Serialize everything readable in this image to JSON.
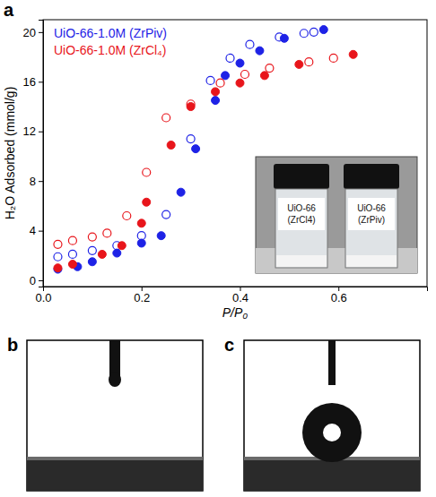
{
  "chart_data": {
    "type": "scatter",
    "panel_label": "a",
    "x_label": "P/P₀",
    "y_label": "H₂O Adsorbed (mmol/g)",
    "xlim": [
      0,
      0.78
    ],
    "ylim": [
      -0.5,
      21
    ],
    "xticks": [
      {
        "value": 0,
        "label": "0.0"
      },
      {
        "value": 0.2,
        "label": "0.2"
      },
      {
        "value": 0.4,
        "label": "0.4"
      },
      {
        "value": 0.6,
        "label": "0.6"
      }
    ],
    "yticks": [
      0,
      4,
      8,
      12,
      16,
      20
    ],
    "grid": false,
    "legend": "upper left",
    "series": [
      {
        "name": "UiO-66-1.0M (ZrPiv)",
        "color": "#1e22e6",
        "marker": "filled",
        "x": [
          0.03,
          0.07,
          0.1,
          0.15,
          0.2,
          0.24,
          0.28,
          0.31,
          0.35,
          0.37,
          0.4,
          0.44,
          0.49,
          0.57
        ],
        "values": [
          0.9,
          1.1,
          1.5,
          2.2,
          3.0,
          3.6,
          7.1,
          10.6,
          14.5,
          16.5,
          17.5,
          18.5,
          19.5,
          20.2
        ]
      },
      {
        "color": "#1e22e6",
        "marker": "open",
        "x": [
          0.03,
          0.06,
          0.1,
          0.15,
          0.2,
          0.25,
          0.3,
          0.34,
          0.38,
          0.42,
          0.48,
          0.53,
          0.55
        ],
        "values": [
          1.9,
          2.1,
          2.4,
          2.8,
          3.6,
          5.3,
          11.4,
          16.1,
          17.9,
          19.0,
          19.6,
          19.9,
          20.0
        ]
      },
      {
        "name": "UiO-66-1.0M (ZrCl₄)",
        "color": "#e8151b",
        "marker": "filled",
        "x": [
          0.03,
          0.06,
          0.12,
          0.16,
          0.2,
          0.21,
          0.26,
          0.3,
          0.35,
          0.4,
          0.45,
          0.52,
          0.63
        ],
        "values": [
          1.0,
          1.3,
          2.1,
          2.8,
          4.6,
          6.3,
          10.9,
          14.0,
          15.2,
          15.9,
          16.5,
          17.4,
          18.2
        ]
      },
      {
        "color": "#e8151b",
        "marker": "open",
        "x": [
          0.03,
          0.06,
          0.1,
          0.13,
          0.17,
          0.21,
          0.25,
          0.3,
          0.36,
          0.41,
          0.46,
          0.54,
          0.59
        ],
        "values": [
          2.9,
          3.2,
          3.5,
          3.8,
          5.2,
          8.7,
          13.1,
          14.2,
          15.9,
          16.6,
          17.1,
          17.6,
          17.9
        ]
      }
    ],
    "annotations": [
      "UiO-66 (ZrCl4)",
      "UiO-66 (ZrPiv)"
    ]
  },
  "photo_panels": [
    {
      "label": "b"
    },
    {
      "label": "c"
    }
  ]
}
